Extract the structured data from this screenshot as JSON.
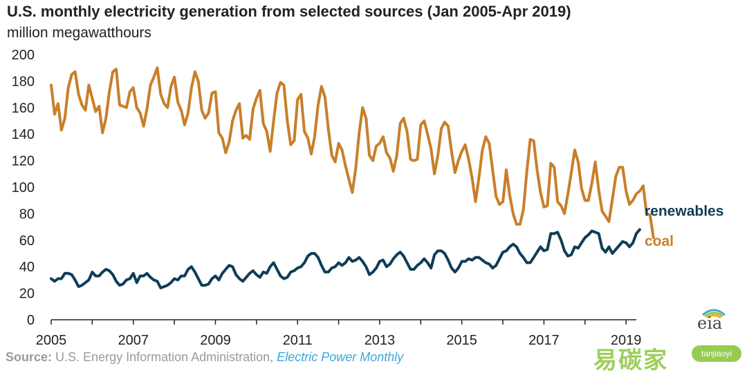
{
  "header": {
    "title": "U.S. monthly electricity generation from selected sources (Jan 2005-Apr 2019)",
    "subtitle": "million megawatthours"
  },
  "source": {
    "label": "Source:",
    "org": "U.S. Energy Information Administration,",
    "publication": "Electric Power Monthly"
  },
  "logo": {
    "text": "eia",
    "icon": "eia-arc-logo-icon"
  },
  "watermark": {
    "text": "易碳家",
    "tag": "tanjiaoyi"
  },
  "colors": {
    "coal": "#c87f2a",
    "renewables": "#0e3d58",
    "axis": "#222222",
    "grid": "#cccccc"
  },
  "chart_data": {
    "type": "line",
    "title": "U.S. monthly electricity generation from selected sources (Jan 2005-Apr 2019)",
    "ylabel": "million megawatthours",
    "xlabel": "",
    "ylim": [
      0,
      200
    ],
    "yticks": [
      0,
      20,
      40,
      60,
      80,
      100,
      120,
      140,
      160,
      180,
      200
    ],
    "xticks": [
      "2005",
      "2007",
      "2009",
      "2011",
      "2013",
      "2015",
      "2017",
      "2019"
    ],
    "x_start": "2005-01",
    "x_end": "2019-04",
    "grid": false,
    "legend": "labels at line ends (right)",
    "series": [
      {
        "name": "coal",
        "color": "#c87f2a",
        "values": [
          177,
          155,
          163,
          143,
          152,
          175,
          185,
          187,
          170,
          162,
          158,
          177,
          167,
          157,
          161,
          141,
          152,
          172,
          187,
          189,
          162,
          161,
          160,
          172,
          175,
          160,
          156,
          146,
          159,
          177,
          183,
          190,
          170,
          163,
          160,
          176,
          183,
          164,
          158,
          147,
          156,
          175,
          187,
          180,
          158,
          152,
          156,
          171,
          172,
          141,
          137,
          126,
          134,
          150,
          158,
          163,
          137,
          139,
          136,
          159,
          167,
          173,
          148,
          142,
          127,
          150,
          171,
          179,
          177,
          150,
          132,
          135,
          166,
          170,
          142,
          137,
          125,
          138,
          162,
          176,
          168,
          144,
          124,
          119,
          133,
          128,
          116,
          106,
          96,
          114,
          141,
          160,
          152,
          124,
          120,
          131,
          133,
          138,
          126,
          122,
          112,
          124,
          148,
          152,
          142,
          121,
          120,
          121,
          147,
          150,
          140,
          129,
          110,
          124,
          144,
          149,
          146,
          127,
          111,
          120,
          127,
          132,
          121,
          107,
          89,
          107,
          128,
          138,
          133,
          113,
          93,
          87,
          89,
          113,
          94,
          80,
          72,
          72,
          83,
          112,
          136,
          135,
          113,
          96,
          85,
          86,
          118,
          115,
          89,
          86,
          80,
          95,
          111,
          128,
          119,
          99,
          90,
          90,
          103,
          119,
          98,
          82,
          78,
          74,
          91,
          108,
          115,
          115,
          97,
          87,
          90,
          95,
          97,
          101,
          80,
          79,
          62
        ]
      },
      {
        "name": "renewables",
        "color": "#0e3d58",
        "values": [
          31,
          29,
          31,
          31,
          35,
          35,
          34,
          30,
          25,
          26,
          28,
          30,
          36,
          33,
          33,
          36,
          38,
          37,
          34,
          29,
          26,
          27,
          30,
          31,
          35,
          28,
          33,
          33,
          35,
          32,
          30,
          29,
          24,
          25,
          26,
          28,
          31,
          30,
          33,
          33,
          38,
          40,
          36,
          31,
          26,
          26,
          27,
          31,
          33,
          30,
          35,
          38,
          41,
          40,
          34,
          31,
          29,
          32,
          35,
          37,
          34,
          32,
          36,
          35,
          40,
          43,
          38,
          33,
          31,
          32,
          36,
          37,
          39,
          40,
          43,
          48,
          50,
          50,
          47,
          41,
          36,
          36,
          39,
          40,
          43,
          41,
          43,
          47,
          44,
          45,
          47,
          44,
          40,
          34,
          36,
          39,
          44,
          45,
          40,
          42,
          46,
          49,
          51,
          48,
          43,
          38,
          38,
          41,
          43,
          46,
          43,
          39,
          49,
          52,
          52,
          50,
          45,
          39,
          36,
          39,
          44,
          44,
          46,
          45,
          47,
          47,
          45,
          43,
          42,
          39,
          41,
          46,
          51,
          52,
          55,
          57,
          55,
          50,
          47,
          43,
          43,
          47,
          51,
          55,
          52,
          53,
          65,
          65,
          66,
          60,
          52,
          48,
          49,
          55,
          54,
          58,
          62,
          64,
          67,
          66,
          65,
          54,
          51,
          55,
          50,
          53,
          56,
          59,
          58,
          55,
          58,
          65,
          68
        ]
      }
    ],
    "annotations": [
      {
        "text": "renewables",
        "series": "renewables"
      },
      {
        "text": "coal",
        "series": "coal"
      }
    ]
  }
}
